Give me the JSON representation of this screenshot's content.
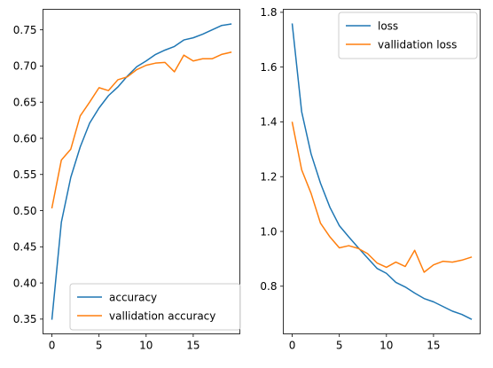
{
  "chart_data": [
    {
      "type": "line",
      "x": [
        0,
        1,
        2,
        3,
        4,
        5,
        6,
        7,
        8,
        9,
        10,
        11,
        12,
        13,
        14,
        15,
        16,
        17,
        18,
        19
      ],
      "series": [
        {
          "name": "accuracy",
          "color": "#1f77b4",
          "values": [
            0.35,
            0.484,
            0.546,
            0.588,
            0.621,
            0.642,
            0.659,
            0.671,
            0.686,
            0.699,
            0.707,
            0.716,
            0.722,
            0.727,
            0.736,
            0.739,
            0.744,
            0.75,
            0.756,
            0.758
          ]
        },
        {
          "name": "vallidation accuracy",
          "color": "#ff7f0e",
          "values": [
            0.504,
            0.57,
            0.585,
            0.631,
            0.65,
            0.67,
            0.666,
            0.681,
            0.685,
            0.695,
            0.701,
            0.704,
            0.705,
            0.692,
            0.715,
            0.707,
            0.71,
            0.71,
            0.716,
            0.719
          ]
        }
      ],
      "xlim": [
        -0.95,
        19.95
      ],
      "ylim": [
        0.3296,
        0.7784
      ],
      "xticks": [
        0,
        5,
        10,
        15
      ],
      "xtick_labels": [
        "0",
        "5",
        "10",
        "15"
      ],
      "yticks": [
        0.35,
        0.4,
        0.45,
        0.5,
        0.55,
        0.6,
        0.65,
        0.7,
        0.75
      ],
      "ytick_labels": [
        "0.35",
        "0.40",
        "0.45",
        "0.50",
        "0.55",
        "0.60",
        "0.65",
        "0.70",
        "0.75"
      ],
      "title": "",
      "xlabel": "",
      "ylabel": "",
      "grid": false,
      "legend_position": "lower-right"
    },
    {
      "type": "line",
      "x": [
        0,
        1,
        2,
        3,
        4,
        5,
        6,
        7,
        8,
        9,
        10,
        11,
        12,
        13,
        14,
        15,
        16,
        17,
        18,
        19
      ],
      "series": [
        {
          "name": "loss",
          "color": "#1f77b4",
          "values": [
            1.757,
            1.437,
            1.283,
            1.176,
            1.088,
            1.021,
            0.98,
            0.941,
            0.903,
            0.865,
            0.847,
            0.814,
            0.797,
            0.775,
            0.755,
            0.743,
            0.726,
            0.709,
            0.697,
            0.68
          ]
        },
        {
          "name": "vallidation loss",
          "color": "#ff7f0e",
          "values": [
            1.398,
            1.225,
            1.139,
            1.03,
            0.98,
            0.94,
            0.948,
            0.938,
            0.919,
            0.885,
            0.869,
            0.888,
            0.872,
            0.931,
            0.851,
            0.878,
            0.891,
            0.888,
            0.895,
            0.906
          ]
        }
      ],
      "xlim": [
        -0.95,
        19.95
      ],
      "ylim": [
        0.626,
        1.811
      ],
      "xticks": [
        0,
        5,
        10,
        15
      ],
      "xtick_labels": [
        "0",
        "5",
        "10",
        "15"
      ],
      "yticks": [
        0.8,
        1.0,
        1.2,
        1.4,
        1.6,
        1.8
      ],
      "ytick_labels": [
        "0.8",
        "1.0",
        "1.2",
        "1.4",
        "1.6",
        "1.8"
      ],
      "title": "",
      "xlabel": "",
      "ylabel": "",
      "grid": false,
      "legend_position": "upper-right"
    }
  ]
}
